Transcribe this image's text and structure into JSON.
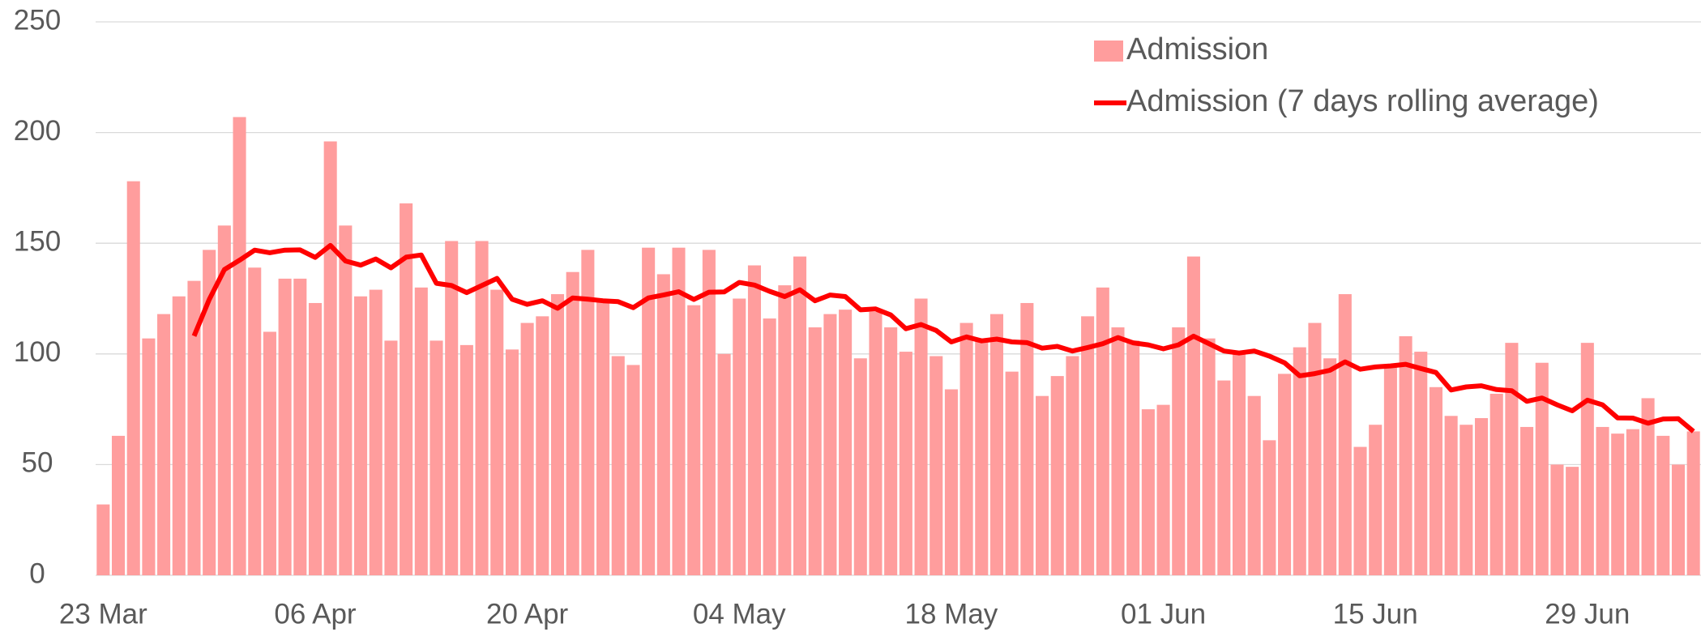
{
  "chart_data": {
    "type": "bar_line",
    "categories": [
      "23 Mar",
      null,
      null,
      null,
      null,
      null,
      null,
      null,
      null,
      null,
      null,
      null,
      null,
      null,
      "06 Apr",
      null,
      null,
      null,
      null,
      null,
      null,
      null,
      null,
      null,
      null,
      null,
      null,
      null,
      "20 Apr",
      null,
      null,
      null,
      null,
      null,
      null,
      null,
      null,
      null,
      null,
      null,
      null,
      null,
      "04 May",
      null,
      null,
      null,
      null,
      null,
      null,
      null,
      null,
      null,
      null,
      null,
      null,
      null,
      "18 May",
      null,
      null,
      null,
      null,
      null,
      null,
      null,
      null,
      null,
      null,
      null,
      null,
      null,
      "01 Jun",
      null,
      null,
      null,
      null,
      null,
      null,
      null,
      null,
      null,
      null,
      null,
      null,
      null,
      "15 Jun",
      null,
      null,
      null,
      null,
      null,
      null,
      null,
      null,
      null,
      null,
      null,
      null,
      null,
      "29 Jun",
      null,
      null,
      null,
      null,
      null,
      null,
      null
    ],
    "series": [
      {
        "name": "Admission",
        "kind": "bar",
        "color": "#ff9d9d",
        "values": [
          32,
          63,
          178,
          107,
          118,
          126,
          133,
          147,
          158,
          207,
          139,
          110,
          134,
          134,
          123,
          196,
          158,
          126,
          129,
          106,
          168,
          130,
          106,
          151,
          104,
          151,
          129,
          102,
          114,
          117,
          127,
          137,
          147,
          124,
          99,
          95,
          148,
          136,
          148,
          122,
          147,
          100,
          125,
          140,
          116,
          131,
          144,
          112,
          118,
          120,
          98,
          119,
          112,
          101,
          125,
          99,
          84,
          114,
          106,
          118,
          92,
          123,
          81,
          90,
          99,
          117,
          130,
          112,
          106,
          75,
          77,
          112,
          144,
          107,
          88,
          100,
          81,
          61,
          91,
          103,
          114,
          98,
          127,
          58,
          68,
          94,
          108,
          101,
          85,
          72,
          68,
          71,
          82,
          105,
          67,
          96,
          50,
          49,
          105,
          67,
          64,
          66,
          80,
          63,
          50,
          65
        ]
      },
      {
        "name": "Admission (7 days rolling average)",
        "kind": "line",
        "color": "#ff0000",
        "values": [
          null,
          null,
          null,
          null,
          null,
          null,
          108.1,
          124.6,
          138.1,
          142.3,
          146.9,
          145.7,
          146.9,
          147,
          143.6,
          149,
          142,
          140.1,
          142.9,
          138.9,
          143.7,
          144.7,
          131.9,
          130.9,
          127.7,
          130.9,
          134.1,
          124.7,
          122.4,
          124,
          120.6,
          125.3,
          124.7,
          124,
          123.6,
          120.9,
          125.3,
          126.6,
          128.1,
          124.6,
          127.9,
          128,
          132.3,
          131.1,
          128.3,
          125.9,
          129,
          124,
          126.6,
          125.9,
          119.9,
          120.3,
          117.6,
          111.4,
          113.3,
          110.6,
          105.4,
          107.7,
          105.9,
          106.7,
          105.4,
          105.1,
          102.6,
          103.4,
          101.3,
          102.9,
          104.6,
          107.4,
          105,
          104.1,
          102.3,
          104.1,
          108,
          104.7,
          101.3,
          100.4,
          101.3,
          99,
          96,
          90.1,
          91.1,
          92.6,
          96.4,
          93.1,
          94.1,
          94.6,
          95.3,
          93.4,
          91.6,
          83.7,
          85.1,
          85.6,
          83.9,
          83.4,
          78.6,
          80.1,
          77,
          74.3,
          79.1,
          77,
          71.1,
          71,
          68.7,
          70.6,
          70.7,
          65
        ]
      }
    ],
    "ylim": [
      0,
      250
    ],
    "yticks": [
      0,
      50,
      100,
      150,
      200,
      250
    ],
    "grid": true,
    "legend": "upper right"
  }
}
